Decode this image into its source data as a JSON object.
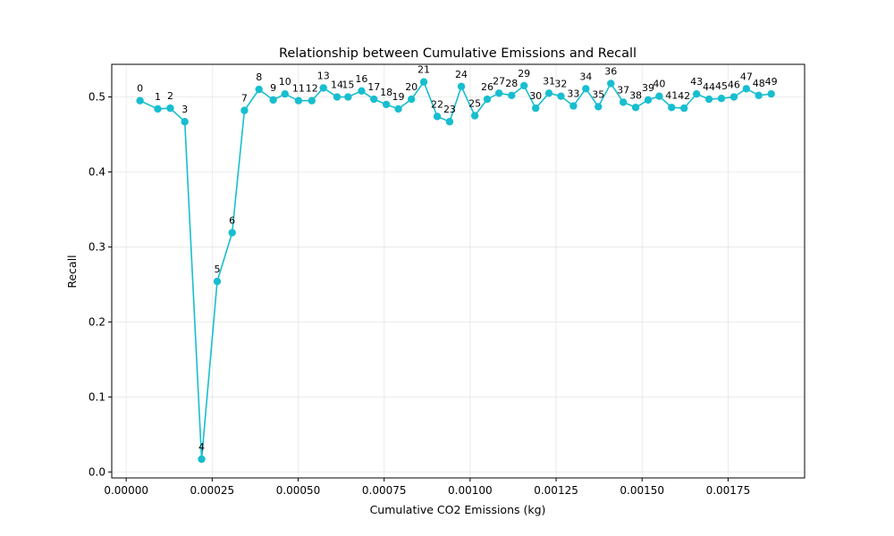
{
  "chart_data": {
    "type": "line",
    "title": "Relationship between Cumulative Emissions and Recall",
    "xlabel": "Cumulative CO2 Emissions (kg)",
    "ylabel": "Recall",
    "xlim": [
      -4.2e-05,
      0.0019725
    ],
    "ylim": [
      -0.008,
      0.5435
    ],
    "xticks": [
      0.0,
      0.00025,
      0.0005,
      0.00075,
      0.001,
      0.00125,
      0.0015,
      0.00175
    ],
    "xtick_labels": [
      "0.00000",
      "0.00025",
      "0.00050",
      "0.00075",
      "0.00100",
      "0.00125",
      "0.00150",
      "0.00175"
    ],
    "yticks": [
      0.0,
      0.1,
      0.2,
      0.3,
      0.4,
      0.5
    ],
    "ytick_labels": [
      "0.0",
      "0.1",
      "0.2",
      "0.3",
      "0.4",
      "0.5"
    ],
    "grid": true,
    "color": "#17becf",
    "series": [
      {
        "x": [
          4.02e-05,
          9.18e-05,
          0.0001281,
          0.0001704,
          0.0002193,
          0.0002646,
          0.0003081,
          0.0003438,
          0.0003861,
          0.0004275,
          0.0004617,
          0.000501,
          0.0005397,
          0.0005733,
          0.0006131,
          0.0006451,
          0.0006843,
          0.0007202,
          0.0007564,
          0.0007912,
          0.0008293,
          0.0008653,
          0.0009043,
          0.0009404,
          0.0009745,
          0.0010136,
          0.0010497,
          0.001084,
          0.0011206,
          0.0011568,
          0.0011906,
          0.0012293,
          0.001264,
          0.0013003,
          0.0013365,
          0.0013728,
          0.0014091,
          0.0014452,
          0.0014814,
          0.0015176,
          0.0015498,
          0.0015859,
          0.001622,
          0.0016583,
          0.0016945,
          0.0017307,
          0.0017669,
          0.0018031,
          0.0018392,
          0.0018754
        ],
        "y": [
          0.495,
          0.484,
          0.485,
          0.467,
          0.017,
          0.254,
          0.319,
          0.482,
          0.51,
          0.496,
          0.504,
          0.495,
          0.495,
          0.512,
          0.5,
          0.5,
          0.508,
          0.497,
          0.49,
          0.484,
          0.497,
          0.52,
          0.474,
          0.467,
          0.514,
          0.475,
          0.497,
          0.505,
          0.502,
          0.515,
          0.485,
          0.505,
          0.501,
          0.488,
          0.511,
          0.487,
          0.518,
          0.493,
          0.486,
          0.496,
          0.501,
          0.486,
          0.485,
          0.504,
          0.497,
          0.498,
          0.5,
          0.511,
          0.502,
          0.504
        ],
        "labels": [
          "0",
          "1",
          "2",
          "3",
          "4",
          "5",
          "6",
          "7",
          "8",
          "9",
          "10",
          "11",
          "12",
          "13",
          "14",
          "15",
          "16",
          "17",
          "18",
          "19",
          "20",
          "21",
          "22",
          "23",
          "24",
          "25",
          "26",
          "27",
          "28",
          "29",
          "30",
          "31",
          "32",
          "33",
          "34",
          "35",
          "36",
          "37",
          "38",
          "39",
          "40",
          "41",
          "42",
          "43",
          "44",
          "45",
          "46",
          "47",
          "48",
          "49"
        ]
      }
    ]
  }
}
